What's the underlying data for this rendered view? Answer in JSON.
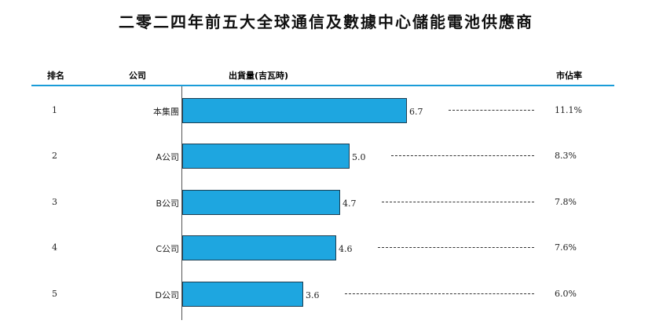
{
  "chart_data": {
    "type": "bar",
    "orientation": "horizontal",
    "title": "二零二四年前五大全球通信及數據中心儲能電池供應商",
    "columns": {
      "rank": "排名",
      "company": "公司",
      "shipment": "出貨量(吉瓦時)",
      "share": "市佔率"
    },
    "rows": [
      {
        "rank": "1",
        "company": "本集團",
        "value": 6.7,
        "value_label": "6.7",
        "share": "11.1%"
      },
      {
        "rank": "2",
        "company": "A公司",
        "value": 5.0,
        "value_label": "5.0",
        "share": "8.3%"
      },
      {
        "rank": "3",
        "company": "B公司",
        "value": 4.7,
        "value_label": "4.7",
        "share": "7.8%"
      },
      {
        "rank": "4",
        "company": "C公司",
        "value": 4.6,
        "value_label": "4.6",
        "share": "7.6%"
      },
      {
        "rank": "5",
        "company": "D公司",
        "value": 3.6,
        "value_label": "3.6",
        "share": "6.0%"
      }
    ],
    "bar_color": "#1ea6e0",
    "bar_border_color": "#1d3e52",
    "rule_color": "#1a9cd8"
  }
}
